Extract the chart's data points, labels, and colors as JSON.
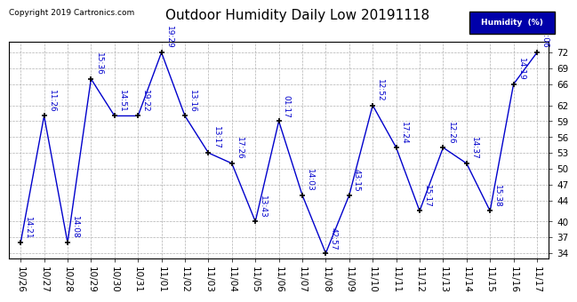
{
  "title": "Outdoor Humidity Daily Low 20191118",
  "copyright": "Copyright 2019 Cartronics.com",
  "legend_label": "Humidity  (%)",
  "x_labels": [
    "10/26",
    "10/27",
    "10/28",
    "10/29",
    "10/30",
    "10/31",
    "11/01",
    "11/02",
    "11/03",
    "11/04",
    "11/05",
    "11/06",
    "11/07",
    "11/08",
    "11/09",
    "11/10",
    "11/11",
    "11/12",
    "11/13",
    "11/14",
    "11/15",
    "11/16",
    "11/17"
  ],
  "y_values": [
    36,
    60,
    36,
    67,
    60,
    60,
    72,
    60,
    53,
    51,
    40,
    59,
    45,
    34,
    45,
    62,
    54,
    42,
    54,
    51,
    42,
    66,
    72
  ],
  "annotations": [
    "14:21",
    "11:26",
    "14:08",
    "15:36",
    "14:51",
    "19:22",
    "19:29",
    "13:16",
    "13:17",
    "17:26",
    "13:43",
    "01:17",
    "14:03",
    "42:57",
    "43:15",
    "12:52",
    "17:24",
    "15:17",
    "12:26",
    "14:37",
    "15:38",
    "14:19",
    "12:06"
  ],
  "line_color": "#0000cc",
  "marker_color": "#000000",
  "annotation_color": "#0000cc",
  "background_color": "#ffffff",
  "grid_color": "#b0b0b0",
  "ylim": [
    33,
    74
  ],
  "yticks": [
    34,
    37,
    40,
    44,
    47,
    50,
    53,
    56,
    59,
    62,
    66,
    69,
    72
  ],
  "title_fontsize": 11,
  "annotation_fontsize": 6.5,
  "tick_fontsize": 7.5,
  "copyright_fontsize": 6.5
}
